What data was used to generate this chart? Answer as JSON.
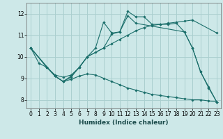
{
  "xlabel": "Humidex (Indice chaleur)",
  "xlim": [
    -0.5,
    23.5
  ],
  "ylim": [
    7.6,
    12.5
  ],
  "yticks": [
    8,
    9,
    10,
    11,
    12
  ],
  "xticks": [
    0,
    1,
    2,
    3,
    4,
    5,
    6,
    7,
    8,
    9,
    10,
    11,
    12,
    13,
    14,
    15,
    16,
    17,
    18,
    19,
    20,
    21,
    22,
    23
  ],
  "bg_color": "#cde8e8",
  "grid_color": "#aacfcf",
  "line_color": "#1a6e6a",
  "lines": [
    {
      "x": [
        0,
        1,
        2,
        3,
        4,
        5,
        6,
        7,
        8,
        9,
        10,
        11,
        12,
        13,
        14,
        15,
        16,
        17,
        18,
        19,
        20,
        21,
        22,
        23
      ],
      "y": [
        10.4,
        9.7,
        9.5,
        9.1,
        8.85,
        9.1,
        9.5,
        10.0,
        10.4,
        11.6,
        11.1,
        11.15,
        12.1,
        11.85,
        11.85,
        11.5,
        11.5,
        11.5,
        11.55,
        11.15,
        10.4,
        9.3,
        8.6,
        7.9
      ]
    },
    {
      "x": [
        0,
        2,
        3,
        4,
        5,
        7,
        9,
        10,
        11,
        12,
        13,
        19,
        20,
        21,
        22,
        23
      ],
      "y": [
        10.4,
        9.5,
        9.1,
        8.85,
        9.05,
        10.0,
        10.4,
        11.05,
        11.15,
        11.9,
        11.55,
        11.15,
        10.4,
        9.3,
        8.55,
        7.9
      ]
    },
    {
      "x": [
        0,
        2,
        3,
        4,
        5,
        6,
        7,
        8,
        9,
        10,
        11,
        12,
        13,
        14,
        15,
        16,
        17,
        18,
        19,
        20,
        23
      ],
      "y": [
        10.4,
        9.5,
        9.15,
        9.05,
        9.15,
        9.5,
        10.0,
        10.2,
        10.4,
        10.6,
        10.8,
        11.0,
        11.2,
        11.35,
        11.45,
        11.5,
        11.55,
        11.6,
        11.65,
        11.7,
        11.1
      ]
    },
    {
      "x": [
        0,
        3,
        4,
        5,
        6,
        7,
        8,
        9,
        10,
        11,
        12,
        13,
        14,
        15,
        16,
        17,
        18,
        19,
        20,
        21,
        22,
        23
      ],
      "y": [
        10.4,
        9.1,
        8.85,
        8.95,
        9.1,
        9.2,
        9.15,
        9.0,
        8.85,
        8.7,
        8.55,
        8.45,
        8.35,
        8.25,
        8.2,
        8.15,
        8.1,
        8.05,
        8.0,
        8.0,
        7.95,
        7.9
      ]
    }
  ]
}
